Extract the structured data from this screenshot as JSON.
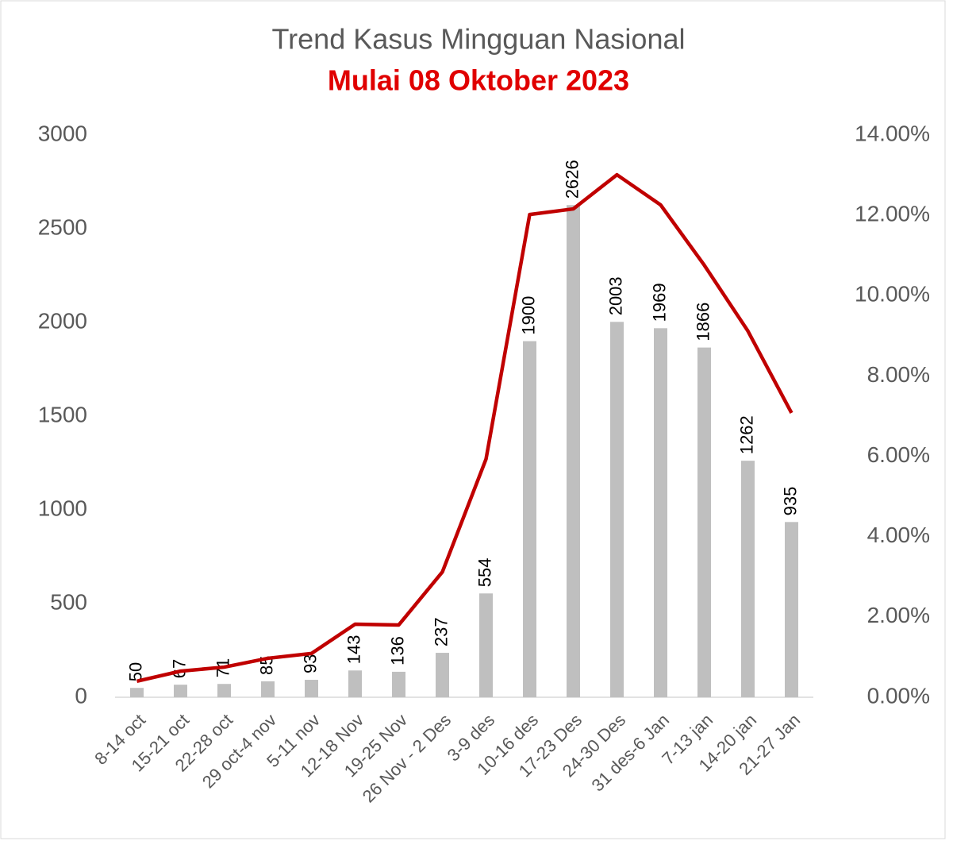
{
  "chart_data": {
    "type": "bar_line",
    "title": "Trend Kasus Mingguan Nasional",
    "subtitle": "Mulai 08 Oktober 2023",
    "categories": [
      "8-14 oct",
      "15-21 oct",
      "22-28 oct",
      "29 oct-4 nov",
      "5-11 nov",
      "12-18 Nov",
      "19-25 Nov",
      "26 Nov - 2 Des",
      "3-9 des",
      "10-16 des",
      "17-23 Des",
      "24-30 Des",
      "31 des-6 Jan",
      "7-13 jan",
      "14-20 jan",
      "21-27 Jan"
    ],
    "series": [
      {
        "type": "bar",
        "color": "#bfbfbf",
        "axis": "y",
        "values": [
          50,
          67,
          71,
          85,
          93,
          143,
          136,
          237,
          554,
          1900,
          2626,
          2003,
          1969,
          1866,
          1262,
          935
        ]
      },
      {
        "type": "line",
        "color": "#c00000",
        "axis": "y2",
        "values": [
          0.4,
          0.65,
          0.75,
          0.97,
          1.09,
          1.82,
          1.8,
          3.12,
          5.93,
          12.02,
          12.16,
          13.01,
          12.26,
          10.76,
          9.12,
          7.08
        ]
      }
    ],
    "ylim": [
      0,
      3000
    ],
    "yticks": [
      0,
      500,
      1000,
      1500,
      2000,
      2500,
      3000
    ],
    "y2lim": [
      0,
      14
    ],
    "y2ticks": [
      {
        "value": 0,
        "label": "0.00%"
      },
      {
        "value": 2,
        "label": "2.00%"
      },
      {
        "value": 4,
        "label": "4.00%"
      },
      {
        "value": 6,
        "label": "6.00%"
      },
      {
        "value": 8,
        "label": "8.00%"
      },
      {
        "value": 10,
        "label": "10.00%"
      },
      {
        "value": 12,
        "label": "12.00%"
      },
      {
        "value": 14,
        "label": "14.00%"
      }
    ],
    "grid": false
  }
}
